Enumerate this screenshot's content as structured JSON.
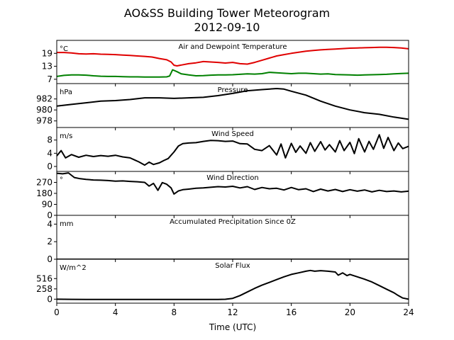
{
  "figure": {
    "title_line1": "AO&SS Building Tower Meteorogram",
    "title_line2": "2012-09-10",
    "xlabel": "Time (UTC)",
    "x_ticks": [
      "0",
      "4",
      "8",
      "12",
      "16",
      "20",
      "24"
    ]
  },
  "chart_data": [
    {
      "type": "line",
      "title": "Air and Dewpoint Temperature",
      "unit": "°C",
      "xlim": [
        0,
        24
      ],
      "ylim": [
        5,
        25
      ],
      "yticks": [
        7,
        13,
        19
      ],
      "series": [
        {
          "color": "#e00000",
          "x": [
            0,
            0.5,
            1,
            1.5,
            2,
            2.5,
            3,
            3.5,
            4,
            4.5,
            5,
            5.5,
            6,
            6.5,
            7,
            7.5,
            7.8,
            8,
            8.2,
            8.5,
            9,
            9.5,
            10,
            10.5,
            11,
            11.5,
            12,
            12.5,
            13,
            13.5,
            14,
            14.5,
            15,
            15.5,
            16,
            16.5,
            17,
            17.5,
            18,
            18.5,
            19,
            19.5,
            20,
            20.5,
            21,
            21.5,
            22,
            22.5,
            23,
            23.5,
            24
          ],
          "y": [
            19.4,
            19.4,
            19.2,
            18.8,
            18.7,
            18.8,
            18.6,
            18.5,
            18.4,
            18.2,
            18.0,
            17.8,
            17.6,
            17.3,
            16.6,
            16.0,
            15.0,
            13.5,
            13.2,
            13.6,
            14.2,
            14.6,
            15.2,
            15.0,
            14.8,
            14.5,
            14.8,
            14.2,
            14.0,
            14.8,
            15.8,
            16.8,
            17.8,
            18.4,
            19.0,
            19.5,
            20.0,
            20.3,
            20.6,
            20.8,
            21.0,
            21.2,
            21.4,
            21.5,
            21.6,
            21.7,
            21.8,
            21.8,
            21.7,
            21.5,
            21.1
          ]
        },
        {
          "color": "#008000",
          "x": [
            0,
            0.5,
            1,
            1.5,
            2,
            2.5,
            3,
            3.5,
            4,
            4.5,
            5,
            5.5,
            6,
            6.5,
            7,
            7.5,
            7.7,
            7.9,
            8.2,
            8.5,
            9,
            9.5,
            10,
            10.5,
            11,
            11.5,
            12,
            12.5,
            13,
            13.5,
            14,
            14.5,
            15,
            15.5,
            16,
            16.5,
            17,
            17.5,
            18,
            18.5,
            19,
            19.5,
            20,
            20.5,
            21,
            21.5,
            22,
            22.5,
            23,
            23.5,
            24
          ],
          "y": [
            8.3,
            8.8,
            9.0,
            9.0,
            8.9,
            8.6,
            8.4,
            8.3,
            8.3,
            8.2,
            8.1,
            8.1,
            8.0,
            8.0,
            8.0,
            8.1,
            8.5,
            11.4,
            10.5,
            9.5,
            9.0,
            8.6,
            8.7,
            8.9,
            9.0,
            9.0,
            9.1,
            9.3,
            9.5,
            9.4,
            9.6,
            10.2,
            10.0,
            9.8,
            9.6,
            9.8,
            9.8,
            9.6,
            9.4,
            9.5,
            9.2,
            9.1,
            9.0,
            8.9,
            9.0,
            9.1,
            9.2,
            9.3,
            9.5,
            9.7,
            9.8
          ]
        }
      ]
    },
    {
      "type": "line",
      "title": "Pressure",
      "unit": "hPa",
      "xlim": [
        0,
        24
      ],
      "ylim": [
        976.8,
        984.8
      ],
      "yticks": [
        978,
        980,
        982
      ],
      "series": [
        {
          "color": "#000000",
          "x": [
            0,
            1,
            2,
            3,
            4,
            5,
            6,
            7,
            8,
            9,
            10,
            11,
            12,
            13,
            14,
            15,
            15.5,
            16,
            17,
            18,
            19,
            20,
            21,
            22,
            23,
            24
          ],
          "y": [
            980.7,
            981.0,
            981.3,
            981.6,
            981.7,
            981.9,
            982.2,
            982.2,
            982.1,
            982.2,
            982.3,
            982.6,
            983.0,
            983.5,
            983.7,
            983.9,
            983.8,
            983.4,
            982.7,
            981.6,
            980.7,
            980.0,
            979.5,
            979.2,
            978.7,
            978.3
          ]
        }
      ]
    },
    {
      "type": "line",
      "title": "Wind Speed",
      "unit": "m/s",
      "xlim": [
        0,
        24
      ],
      "ylim": [
        -1.5,
        11.8
      ],
      "yticks": [
        0,
        4,
        8
      ],
      "series": [
        {
          "color": "#000000",
          "x": [
            0,
            0.3,
            0.6,
            1,
            1.5,
            2,
            2.5,
            3,
            3.5,
            4,
            4.5,
            5,
            5.3,
            5.6,
            6,
            6.3,
            6.6,
            7,
            7.3,
            7.6,
            8,
            8.3,
            8.6,
            9,
            9.5,
            10,
            10.5,
            11,
            11.5,
            12,
            12.5,
            13,
            13.5,
            14,
            14.5,
            15,
            15.3,
            15.6,
            16,
            16.3,
            16.6,
            17,
            17.3,
            17.6,
            18,
            18.3,
            18.6,
            19,
            19.3,
            19.6,
            20,
            20.3,
            20.6,
            21,
            21.3,
            21.6,
            22,
            22.3,
            22.6,
            23,
            23.3,
            23.6,
            24
          ],
          "y": [
            3.2,
            4.8,
            2.6,
            3.6,
            2.8,
            3.4,
            3.0,
            3.3,
            3.1,
            3.4,
            2.9,
            2.6,
            2.0,
            1.4,
            0.4,
            1.3,
            0.6,
            1.1,
            1.8,
            2.4,
            4.4,
            6.2,
            6.9,
            7.1,
            7.2,
            7.6,
            7.9,
            7.8,
            7.6,
            7.7,
            6.9,
            6.8,
            5.2,
            4.8,
            6.3,
            3.5,
            6.8,
            2.6,
            7.0,
            4.3,
            6.2,
            4.0,
            7.2,
            4.6,
            7.5,
            5.0,
            6.6,
            4.4,
            7.8,
            4.8,
            7.3,
            3.9,
            8.4,
            4.4,
            7.6,
            5.2,
            9.6,
            5.5,
            8.8,
            4.8,
            7.1,
            5.4,
            6.1
          ]
        }
      ]
    },
    {
      "type": "line",
      "title": "Wind Direction",
      "unit": "°",
      "xlim": [
        0,
        24
      ],
      "ylim": [
        0,
        360
      ],
      "yticks": [
        0,
        90,
        180,
        270
      ],
      "series": [
        {
          "color": "#000000",
          "x": [
            0,
            0.4,
            0.8,
            1.2,
            1.6,
            2,
            2.5,
            3,
            3.5,
            4,
            4.5,
            5,
            5.5,
            6,
            6.3,
            6.6,
            6.9,
            7.2,
            7.5,
            7.8,
            8,
            8.3,
            8.6,
            9,
            9.5,
            10,
            10.5,
            11,
            11.5,
            12,
            12.5,
            13,
            13.5,
            14,
            14.5,
            15,
            15.5,
            16,
            16.5,
            17,
            17.5,
            18,
            18.5,
            19,
            19.5,
            20,
            20.5,
            21,
            21.5,
            22,
            22.5,
            23,
            23.5,
            24
          ],
          "y": [
            345,
            340,
            348,
            310,
            300,
            295,
            290,
            288,
            285,
            280,
            282,
            278,
            275,
            270,
            240,
            262,
            205,
            268,
            255,
            225,
            175,
            200,
            210,
            215,
            222,
            225,
            230,
            235,
            232,
            238,
            225,
            235,
            212,
            228,
            218,
            222,
            208,
            228,
            210,
            218,
            195,
            215,
            200,
            212,
            195,
            210,
            198,
            208,
            192,
            205,
            195,
            200,
            192,
            198
          ]
        }
      ]
    },
    {
      "type": "line",
      "title": "Accumulated Precipitation Since 0Z",
      "unit": "mm",
      "xlim": [
        0,
        24
      ],
      "ylim": [
        0,
        5
      ],
      "yticks": [
        0,
        2,
        4
      ],
      "series": [
        {
          "color": "#000000",
          "x": [
            0,
            24
          ],
          "y": [
            0,
            0
          ]
        }
      ]
    },
    {
      "type": "line",
      "title": "Solar Flux",
      "unit": "W/m^2",
      "xlim": [
        0,
        24
      ],
      "ylim": [
        -100,
        1000
      ],
      "yticks": [
        0,
        258,
        516
      ],
      "series": [
        {
          "color": "#000000",
          "x": [
            0,
            1,
            2,
            3,
            4,
            5,
            6,
            7,
            8,
            9,
            10,
            11,
            11.5,
            12,
            12.5,
            13,
            13.5,
            14,
            14.5,
            15,
            15.5,
            16,
            16.5,
            17,
            17.3,
            17.6,
            18,
            18.5,
            19,
            19.2,
            19.5,
            19.8,
            20,
            20.5,
            21,
            21.5,
            22,
            22.5,
            23,
            23.3,
            23.6,
            24
          ],
          "y": [
            0,
            -5,
            -6,
            -6,
            -6,
            -6,
            -6,
            -6,
            -6,
            -6,
            -6,
            -6,
            -2,
            20,
            90,
            180,
            270,
            350,
            420,
            490,
            560,
            620,
            660,
            700,
            720,
            700,
            715,
            700,
            680,
            600,
            660,
            590,
            620,
            560,
            500,
            430,
            340,
            250,
            160,
            90,
            30,
            0
          ]
        }
      ]
    }
  ]
}
